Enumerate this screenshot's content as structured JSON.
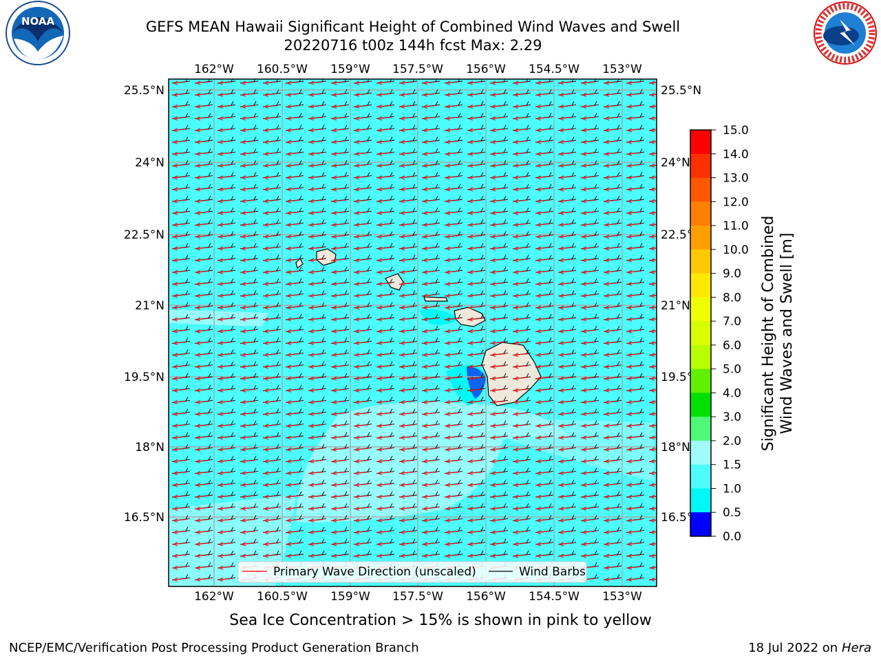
{
  "title": {
    "line1": "GEFS MEAN Hawaii Significant Height of Combined Wind Waves and Swell",
    "line2": "20220716 t00z 144h fcst   Max: 2.29"
  },
  "logos": {
    "left": {
      "name": "noaa-logo",
      "text": "NOAA"
    },
    "right": {
      "name": "nws-logo",
      "text": "NATIONAL WEATHER SERVICE"
    }
  },
  "map": {
    "lon_labels": [
      "162°W",
      "160.5°W",
      "159°W",
      "157.5°W",
      "156°W",
      "154.5°W",
      "153°W"
    ],
    "lat_labels": [
      "25.5°N",
      "24°N",
      "22.5°N",
      "21°N",
      "19.5°N",
      "18°N",
      "16.5°N"
    ],
    "ocean_color": "#4dfcfc",
    "land_color": "#efe9dc",
    "islands": [
      "Kauai",
      "Oahu",
      "Maui",
      "Hawaii"
    ]
  },
  "legend": {
    "wave_dir": "Primary Wave Direction (unscaled)",
    "wind_barbs": "Wind Barbs"
  },
  "colorbar": {
    "label_line1": "Significant Height of Combined",
    "label_line2": "Wind Waves and Swell [m]",
    "ticks": [
      "15.0",
      "14.0",
      "13.0",
      "12.0",
      "11.0",
      "10.0",
      "9.0",
      "8.0",
      "7.0",
      "6.0",
      "5.0",
      "4.0",
      "3.0",
      "2.0",
      "1.5",
      "1.0",
      "0.5",
      "0.0"
    ],
    "colors": [
      "#ff0000",
      "#ff3000",
      "#ff5800",
      "#ff8000",
      "#ffa000",
      "#ffc800",
      "#ffe800",
      "#f0ff00",
      "#d8ff00",
      "#b8ff00",
      "#60f000",
      "#00e000",
      "#50f878",
      "#a0fcfc",
      "#4dfcfc",
      "#00f8f8",
      "#0078ff",
      "#0000ff"
    ]
  },
  "footer": {
    "ice_note": "Sea Ice Concentration > 15% is shown in pink to yellow",
    "branch": "NCEP/EMC/Verification Post Processing Product Generation Branch",
    "date": "18 Jul 2022 on",
    "host": "Hera"
  }
}
